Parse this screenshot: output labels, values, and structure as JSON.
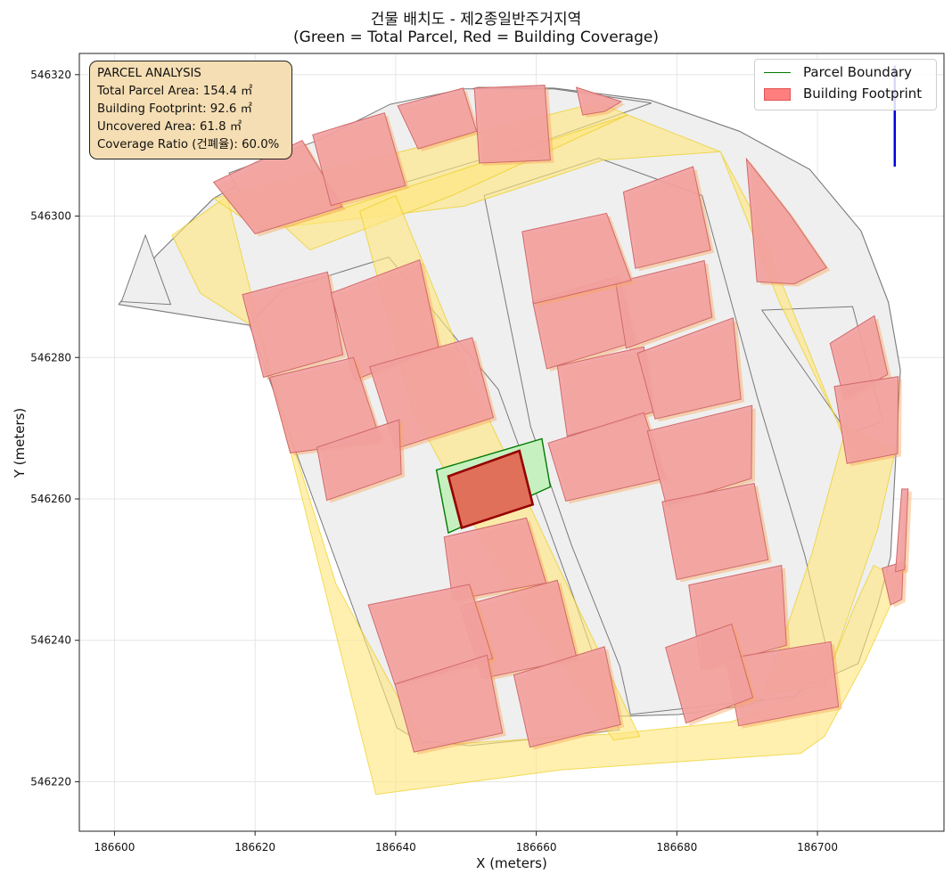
{
  "figure": {
    "title_line1": "건물 배치도 - 제2종일반주거지역",
    "title_line2": "(Green = Total Parcel, Red = Building Coverage)"
  },
  "info_box": {
    "heading": "PARCEL ANALYSIS",
    "lines": [
      "Total Parcel Area: 154.4 ㎡",
      "Building Footprint: 92.6 ㎡",
      "Uncovered Area: 61.8 ㎡",
      "Coverage Ratio (건폐율): 60.0%"
    ]
  },
  "legend": {
    "placement": "top-right",
    "items": [
      {
        "label": "Parcel Boundary",
        "kind": "line",
        "color": "#007a00"
      },
      {
        "label": "Building Footprint",
        "kind": "patch",
        "color": "#ff7f7f"
      }
    ]
  },
  "colors": {
    "road": "#ffe680",
    "road_edge": "#e8c800",
    "parcel_fill": "#efefef",
    "parcel_edge": "#7a7a7a",
    "building_fill": "#f2a0a0",
    "building_edge": "#d26a6a",
    "building_overlap": "#f9a860",
    "subject_parcel_fill": "#c6f0c0",
    "subject_parcel_edge": "#007a00",
    "subject_building_fill": "#e0705a",
    "subject_building_edge": "#960000",
    "north_arrow": "#0000dd",
    "grid": "#e6e6e6"
  },
  "chart_data": {
    "type": "map",
    "xlabel": "X (meters)",
    "ylabel": "Y (meters)",
    "xlim": [
      186595,
      186718
    ],
    "ylim": [
      546213,
      546323
    ],
    "xticks": [
      186600,
      186620,
      186640,
      186660,
      186680,
      186700
    ],
    "yticks": [
      546220,
      546240,
      546260,
      546280,
      546300,
      546320
    ],
    "grid": true,
    "coverage": {
      "total_parcel_area_m2": 154.4,
      "building_footprint_m2": 92.6,
      "uncovered_area_m2": 61.8,
      "coverage_ratio_pct": 60.0
    },
    "subject_parcel": [
      [
        186645.8,
        546264.1
      ],
      [
        186660.8,
        546268.5
      ],
      [
        186662.0,
        546261.7
      ],
      [
        186647.5,
        546255.2
      ]
    ],
    "subject_building": [
      [
        186647.5,
        546263.2
      ],
      [
        186657.6,
        546266.8
      ],
      [
        186659.5,
        546259.2
      ],
      [
        186649.4,
        546255.9
      ]
    ],
    "site_boundary": [
      [
        186600.6,
        546287.5
      ],
      [
        186605.9,
        546294.4
      ],
      [
        186614.1,
        546302.5
      ],
      [
        186622.7,
        546307.3
      ],
      [
        186630.3,
        546310.9
      ],
      [
        186640.4,
        546314.8
      ],
      [
        186651.7,
        546318.2
      ],
      [
        186662.5,
        546318.1
      ],
      [
        186676.2,
        546316.4
      ],
      [
        186688.9,
        546312.0
      ],
      [
        186698.9,
        546306.6
      ],
      [
        186706.2,
        546297.9
      ],
      [
        186710.1,
        546287.8
      ],
      [
        186711.8,
        546278.2
      ],
      [
        186711.1,
        546265.2
      ],
      [
        186710.4,
        546251.8
      ],
      [
        186708.6,
        546245.0
      ],
      [
        186705.8,
        546236.7
      ],
      [
        186700.0,
        546234.1
      ],
      [
        186690.0,
        546230.8
      ],
      [
        186680.3,
        546229.5
      ],
      [
        186670.0,
        546229.2
      ],
      [
        186660.0,
        546228.4
      ],
      [
        186650.8,
        546226.5
      ],
      [
        186643.1,
        546225.3
      ],
      [
        186641.9,
        546226.6
      ],
      [
        186633.5,
        546282.3
      ],
      [
        186600.6,
        546287.5
      ]
    ],
    "roads": [
      [
        [
          186608.2,
          546297.3
        ],
        [
          186616.0,
          546302.8
        ],
        [
          186637.2,
          546218.2
        ],
        [
          186663.7,
          546221.7
        ],
        [
          186697.6,
          546224.0
        ],
        [
          186701.0,
          546226.4
        ],
        [
          186706.8,
          546237.1
        ],
        [
          186712.0,
          546248.5
        ],
        [
          186708.0,
          546250.6
        ],
        [
          186705.3,
          546244.8
        ],
        [
          186700.7,
          546233.4
        ],
        [
          186687.8,
          546228.5
        ],
        [
          186671.3,
          546226.8
        ],
        [
          186644.1,
          546225.1
        ],
        [
          186631.5,
          546248.0
        ],
        [
          186620.3,
          546284.0
        ],
        [
          186612.2,
          546289.1
        ],
        [
          186608.2,
          546297.3
        ]
      ],
      [
        [
          186614.1,
          546302.5
        ],
        [
          186668.9,
          546316.1
        ],
        [
          186673.0,
          546314.3
        ],
        [
          186686.2,
          546309.1
        ],
        [
          186669.5,
          546307.9
        ],
        [
          186649.7,
          546301.4
        ],
        [
          186630.8,
          546299.2
        ],
        [
          186620.6,
          546298.1
        ],
        [
          186614.1,
          546302.5
        ]
      ],
      [
        [
          186686.2,
          546309.1
        ],
        [
          186694.6,
          546287.8
        ],
        [
          186702.8,
          546271.0
        ],
        [
          186711.1,
          546267.0
        ],
        [
          186708.6,
          546255.8
        ],
        [
          186701.0,
          546233.6
        ],
        [
          186692.4,
          546232.3
        ],
        [
          186699.2,
          546252.2
        ],
        [
          186703.7,
          546268.7
        ],
        [
          186691.1,
          546300.0
        ],
        [
          186686.2,
          546309.1
        ]
      ],
      [
        [
          186673.0,
          546314.3
        ],
        [
          186648.0,
          546302.9
        ],
        [
          186627.8,
          546295.2
        ],
        [
          186624.3,
          546298.4
        ],
        [
          186673.0,
          546314.3
        ]
      ],
      [
        [
          186640.0,
          546302.9
        ],
        [
          186651.4,
          546275.2
        ],
        [
          186662.2,
          546252.4
        ],
        [
          186674.7,
          546226.4
        ],
        [
          186671.0,
          546225.9
        ],
        [
          186654.2,
          546250.7
        ],
        [
          186642.4,
          546272.6
        ],
        [
          186634.9,
          546300.7
        ],
        [
          186640.0,
          546302.9
        ]
      ]
    ],
    "blocks": [
      [
        [
          186619.2,
          546284.6
        ],
        [
          186623.8,
          546289.5
        ],
        [
          186639.0,
          546294.2
        ],
        [
          186654.6,
          546275.5
        ],
        [
          186665.0,
          546247.0
        ],
        [
          186671.8,
          546227.3
        ],
        [
          186650.5,
          546225.1
        ],
        [
          186643.3,
          546225.8
        ],
        [
          186640.2,
          546227.6
        ],
        [
          186619.2,
          546284.6
        ]
      ],
      [
        [
          186652.6,
          546302.9
        ],
        [
          186668.9,
          546308.2
        ],
        [
          186683.6,
          546302.9
        ],
        [
          186691.5,
          546274.2
        ],
        [
          186698.2,
          546252.0
        ],
        [
          186701.8,
          546236.7
        ],
        [
          186696.8,
          546232.1
        ],
        [
          186673.4,
          546229.5
        ],
        [
          186671.9,
          546236.3
        ],
        [
          186665.0,
          546253.5
        ],
        [
          186659.2,
          546270.2
        ],
        [
          186652.6,
          546302.9
        ]
      ],
      [
        [
          186616.3,
          546306.1
        ],
        [
          186621.0,
          546297.9
        ],
        [
          186636.1,
          546303.2
        ],
        [
          186661.6,
          546310.8
        ],
        [
          186676.4,
          546316.0
        ],
        [
          186662.5,
          546318.0
        ],
        [
          186649.7,
          546318.0
        ],
        [
          186639.2,
          546315.8
        ],
        [
          186629.2,
          546310.8
        ],
        [
          186616.3,
          546306.1
        ]
      ],
      [
        [
          186692.1,
          546286.7
        ],
        [
          186705.0,
          546287.2
        ],
        [
          186709.3,
          546271.0
        ],
        [
          186704.4,
          546269.2
        ],
        [
          186699.5,
          546276.2
        ],
        [
          186692.1,
          546286.7
        ]
      ],
      [
        [
          186604.4,
          546297.3
        ],
        [
          186601.0,
          546287.9
        ],
        [
          186608.0,
          546287.5
        ],
        [
          186604.4,
          546297.3
        ]
      ]
    ],
    "buildings": [
      [
        [
          186618.2,
          546288.9
        ],
        [
          186630.3,
          546292.1
        ],
        [
          186632.5,
          546280.4
        ],
        [
          186621.2,
          546277.2
        ]
      ],
      [
        [
          186630.8,
          546289.1
        ],
        [
          186643.4,
          546293.8
        ],
        [
          186646.1,
          546281.5
        ],
        [
          186634.1,
          546276.8
        ]
      ],
      [
        [
          186622.1,
          546277.2
        ],
        [
          186634.0,
          546280.0
        ],
        [
          186637.9,
          546268.2
        ],
        [
          186625.0,
          546266.5
        ]
      ],
      [
        [
          186636.3,
          546278.7
        ],
        [
          186650.9,
          546282.8
        ],
        [
          186653.9,
          546271.5
        ],
        [
          186640.0,
          546267.1
        ]
      ],
      [
        [
          186628.8,
          546267.3
        ],
        [
          186640.5,
          546271.2
        ],
        [
          186640.8,
          546263.5
        ],
        [
          186630.2,
          546259.8
        ]
      ],
      [
        [
          186659.5,
          546287.9
        ],
        [
          186671.6,
          546291.5
        ],
        [
          186674.0,
          546282.2
        ],
        [
          186661.5,
          546278.4
        ]
      ],
      [
        [
          186671.3,
          546290.6
        ],
        [
          186683.9,
          546293.7
        ],
        [
          186685.0,
          546285.7
        ],
        [
          186672.8,
          546281.3
        ]
      ],
      [
        [
          186658.0,
          546297.8
        ],
        [
          186670.0,
          546300.4
        ],
        [
          186673.5,
          546290.9
        ],
        [
          186659.6,
          546287.6
        ]
      ],
      [
        [
          186672.4,
          546303.4
        ],
        [
          186682.3,
          546307.0
        ],
        [
          186684.8,
          546295.2
        ],
        [
          186674.1,
          546292.6
        ]
      ],
      [
        [
          186663.0,
          546278.8
        ],
        [
          186675.3,
          546281.5
        ],
        [
          186676.7,
          546272.3
        ],
        [
          186664.4,
          546268.9
        ]
      ],
      [
        [
          186674.4,
          546280.6
        ],
        [
          186688.0,
          546285.6
        ],
        [
          186689.1,
          546274.1
        ],
        [
          186676.9,
          546271.3
        ]
      ],
      [
        [
          186661.7,
          546267.9
        ],
        [
          186675.3,
          546272.2
        ],
        [
          186678.3,
          546262.9
        ],
        [
          186664.2,
          546259.7
        ]
      ],
      [
        [
          186675.8,
          546269.6
        ],
        [
          186690.7,
          546273.2
        ],
        [
          186690.6,
          546262.9
        ],
        [
          186678.5,
          546259.1
        ]
      ],
      [
        [
          186677.9,
          546259.6
        ],
        [
          186691.0,
          546262.2
        ],
        [
          186693.0,
          546251.4
        ],
        [
          186680.0,
          546248.6
        ]
      ],
      [
        [
          186681.7,
          546247.8
        ],
        [
          186694.9,
          546250.6
        ],
        [
          186695.6,
          546239.3
        ],
        [
          186683.5,
          546235.9
        ]
      ],
      [
        [
          186687.0,
          546237.4
        ],
        [
          186701.9,
          546239.8
        ],
        [
          186703.0,
          546230.6
        ],
        [
          186688.8,
          546227.9
        ]
      ],
      [
        [
          186678.4,
          546239.0
        ],
        [
          186687.8,
          546242.3
        ],
        [
          186690.8,
          546231.9
        ],
        [
          186681.3,
          546228.3
        ]
      ],
      [
        [
          186646.9,
          546254.6
        ],
        [
          186658.6,
          546257.3
        ],
        [
          186661.4,
          546248.1
        ],
        [
          186648.1,
          546245.7
        ]
      ],
      [
        [
          186649.2,
          546244.8
        ],
        [
          186663.0,
          546248.5
        ],
        [
          186665.8,
          546237.4
        ],
        [
          186652.3,
          546234.6
        ]
      ],
      [
        [
          186636.1,
          546245.0
        ],
        [
          186650.5,
          546247.9
        ],
        [
          186653.8,
          546237.4
        ],
        [
          186639.9,
          546233.7
        ]
      ],
      [
        [
          186639.9,
          546233.8
        ],
        [
          186653.0,
          546237.9
        ],
        [
          186655.2,
          546226.9
        ],
        [
          186642.6,
          546224.2
        ]
      ],
      [
        [
          186656.8,
          546235.1
        ],
        [
          186669.7,
          546239.1
        ],
        [
          186672.0,
          546228.1
        ],
        [
          186659.1,
          546224.9
        ]
      ],
      [
        [
          186614.1,
          546304.8
        ],
        [
          186626.7,
          546310.7
        ],
        [
          186632.4,
          546301.3
        ],
        [
          186620.0,
          546297.5
        ]
      ],
      [
        [
          186628.2,
          546311.5
        ],
        [
          186638.4,
          546314.6
        ],
        [
          186641.4,
          546304.3
        ],
        [
          186630.8,
          546301.5
        ]
      ],
      [
        [
          186640.3,
          546315.6
        ],
        [
          186649.6,
          546318.1
        ],
        [
          186651.5,
          546312.0
        ],
        [
          186643.2,
          546309.5
        ]
      ],
      [
        [
          186651.2,
          546318.1
        ],
        [
          186661.2,
          546318.5
        ],
        [
          186662.0,
          546307.9
        ],
        [
          186651.9,
          546307.5
        ]
      ],
      [
        [
          186665.7,
          546318.2
        ],
        [
          186672.1,
          546316.2
        ],
        [
          186669.7,
          546314.8
        ],
        [
          186666.6,
          546314.3
        ]
      ],
      [
        [
          186689.9,
          546308.1
        ],
        [
          186696.1,
          546300.2
        ],
        [
          186701.3,
          546292.7
        ],
        [
          186696.7,
          546290.4
        ],
        [
          186691.4,
          546290.7
        ]
      ],
      [
        [
          186701.8,
          546282.0
        ],
        [
          186708.1,
          546285.9
        ],
        [
          186710.0,
          546277.6
        ],
        [
          186703.8,
          546274.1
        ]
      ],
      [
        [
          186702.4,
          546275.9
        ],
        [
          186711.5,
          546277.3
        ],
        [
          186711.4,
          546266.4
        ],
        [
          186704.2,
          546265.0
        ]
      ],
      [
        [
          186709.2,
          546250.2
        ],
        [
          186712.2,
          546251.1
        ],
        [
          186712.0,
          546245.8
        ],
        [
          186710.4,
          546245.0
        ]
      ],
      [
        [
          186712.0,
          546261.4
        ],
        [
          186712.9,
          546261.4
        ],
        [
          186712.4,
          546250.0
        ],
        [
          186711.1,
          546249.7
        ]
      ]
    ],
    "north_arrow": [
      [
        186711.0,
        546307.0
      ],
      [
        186711.0,
        546321.3
      ]
    ]
  }
}
